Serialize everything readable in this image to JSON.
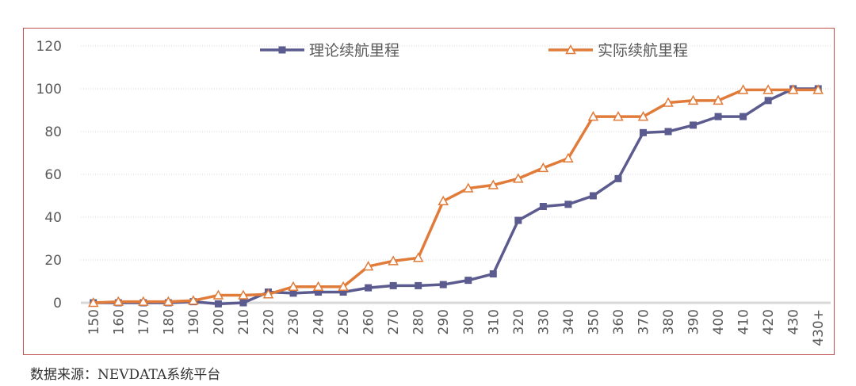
{
  "chart_data": {
    "type": "line",
    "categories": [
      "150",
      "160",
      "170",
      "180",
      "190",
      "200",
      "210",
      "220",
      "230",
      "240",
      "250",
      "260",
      "270",
      "280",
      "290",
      "300",
      "310",
      "320",
      "330",
      "340",
      "350",
      "360",
      "370",
      "380",
      "390",
      "400",
      "410",
      "420",
      "430",
      "430+"
    ],
    "series": [
      {
        "name": "理论续航里程",
        "color": "#5b5b8f",
        "marker": "square",
        "values": [
          0,
          0,
          0,
          0,
          0.5,
          -0.5,
          0,
          5,
          4.5,
          5,
          5,
          7,
          8,
          8,
          8.5,
          10.5,
          13.5,
          38.5,
          45,
          46,
          50,
          58,
          79.5,
          80,
          83,
          87,
          87,
          94.5,
          100,
          100
        ]
      },
      {
        "name": "实际续航里程",
        "color": "#e07b39",
        "marker": "triangle",
        "values": [
          0,
          0.5,
          0.5,
          0.5,
          1,
          3.5,
          3.5,
          4,
          7.5,
          7.5,
          7.5,
          17,
          19.5,
          21,
          47.5,
          53.5,
          55,
          58,
          63,
          67.5,
          87,
          87,
          87,
          93.5,
          94.5,
          94.5,
          99.5,
          99.5,
          99.5,
          99.5
        ]
      }
    ],
    "yticks": [
      0,
      20,
      40,
      60,
      80,
      100,
      120
    ],
    "ylim": [
      0,
      120
    ],
    "grid": true,
    "legend": "top-center"
  },
  "source_note": "数据来源：NEVDATA系统平台"
}
